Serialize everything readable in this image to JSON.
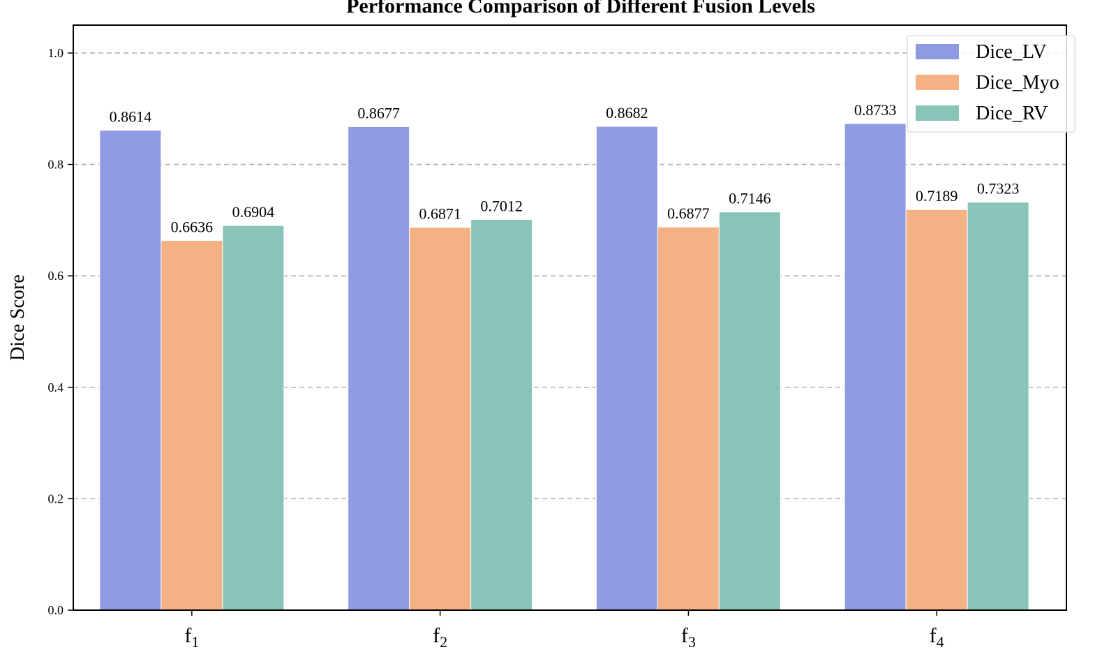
{
  "chart_data": {
    "type": "bar",
    "title": "Performance Comparison of Different Fusion Levels",
    "xlabel": "",
    "ylabel": "Dice Score",
    "ylim": [
      0,
      1.05
    ],
    "yticks": [
      0.0,
      0.2,
      0.4,
      0.6,
      0.8,
      1.0
    ],
    "ytick_labels": [
      "0.0",
      "0.2",
      "0.4",
      "0.6",
      "0.8",
      "1.0"
    ],
    "categories": [
      "f",
      "f",
      "f",
      "f"
    ],
    "category_subscripts": [
      "1",
      "2",
      "3",
      "4"
    ],
    "grid": "horizontal dashed",
    "legend_position": "top-right",
    "series": [
      {
        "name": "Dice_LV",
        "color": "#8f9be1",
        "values": [
          0.8614,
          0.8677,
          0.8682,
          0.8733
        ],
        "labels": [
          "0.8614",
          "0.8677",
          "0.8682",
          "0.8733"
        ]
      },
      {
        "name": "Dice_Myo",
        "color": "#f4b183",
        "values": [
          0.6636,
          0.6871,
          0.6877,
          0.7189
        ],
        "labels": [
          "0.6636",
          "0.6871",
          "0.6877",
          "0.7189"
        ]
      },
      {
        "name": "Dice_RV",
        "color": "#89c4b8",
        "values": [
          0.6904,
          0.7012,
          0.7146,
          0.7323
        ],
        "labels": [
          "0.6904",
          "0.7012",
          "0.7146",
          "0.7323"
        ]
      }
    ]
  }
}
